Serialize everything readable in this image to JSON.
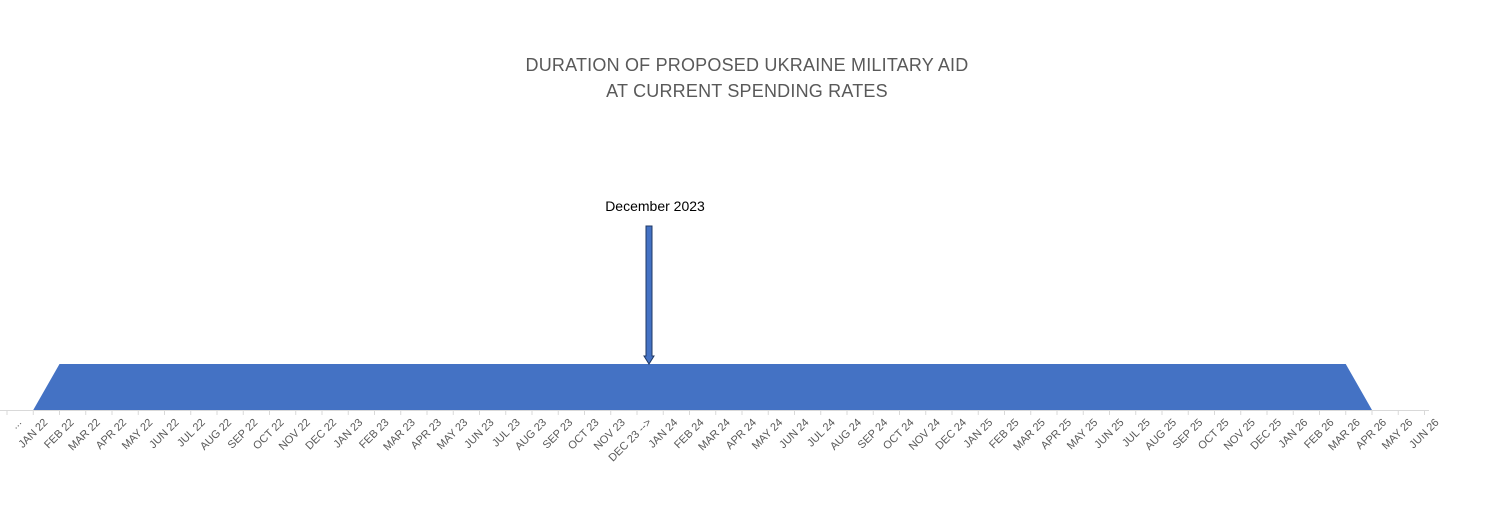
{
  "chart_data": {
    "type": "area",
    "title_line1": "DURATION OF PROPOSED UKRAINE MILITARY AID",
    "title_line2": "AT CURRENT SPENDING RATES",
    "xlabel": "",
    "ylabel": "",
    "categories": [
      "...",
      "JAN 22",
      "FEB 22",
      "MAR 22",
      "APR 22",
      "MAY 22",
      "JUN 22",
      "JUL 22",
      "AUG 22",
      "SEP 22",
      "OCT 22",
      "NOV 22",
      "DEC 22",
      "JAN 23",
      "FEB 23",
      "MAR 23",
      "APR 23",
      "MAY 23",
      "JUN 23",
      "JUL 23",
      "AUG 23",
      "SEP 23",
      "OCT 23",
      "NOV 23",
      "DEC 23 -->",
      "JAN 24",
      "FEB 24",
      "MAR 24",
      "APR 24",
      "MAY 24",
      "JUN 24",
      "JUL 24",
      "AUG 24",
      "SEP 24",
      "OCT 24",
      "NOV 24",
      "DEC 24",
      "JAN 25",
      "FEB 25",
      "MAR 25",
      "APR 25",
      "MAY 25",
      "JUN 25",
      "JUL 25",
      "AUG 25",
      "SEP 25",
      "OCT 25",
      "NOV 25",
      "DEC 25",
      "JAN 26",
      "FEB 26",
      "MAR 26",
      "APR 26",
      "MAY 26",
      "JUN 26"
    ],
    "values": [
      0,
      0,
      1,
      1,
      1,
      1,
      1,
      1,
      1,
      1,
      1,
      1,
      1,
      1,
      1,
      1,
      1,
      1,
      1,
      1,
      1,
      1,
      1,
      1,
      1,
      1,
      1,
      1,
      1,
      1,
      1,
      1,
      1,
      1,
      1,
      1,
      1,
      1,
      1,
      1,
      1,
      1,
      1,
      1,
      1,
      1,
      1,
      1,
      1,
      1,
      1,
      1,
      0,
      0,
      0
    ],
    "ylim": [
      0,
      5
    ],
    "grid": false,
    "legend": "none",
    "area_color": "#4472c4",
    "annotation": {
      "text": "December 2023",
      "category": "DEC 23 -->",
      "arrow_color": "#4472c4"
    }
  }
}
